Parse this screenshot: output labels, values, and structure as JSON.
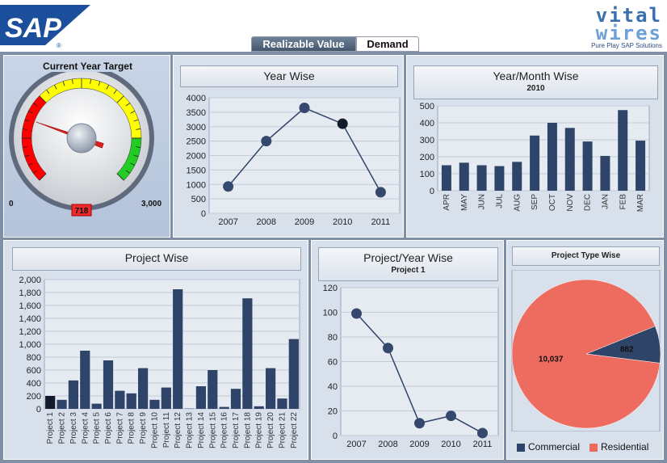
{
  "header": {
    "logo_text": "SAP",
    "tabs": [
      {
        "label": "Realizable Value",
        "active": true
      },
      {
        "label": "Demand",
        "active": false
      }
    ],
    "brand": {
      "line1": "vital",
      "line2": "wires",
      "tagline": "Pure Play SAP Solutions"
    }
  },
  "gauge": {
    "title": "Current Year Target",
    "min_label": "0",
    "max_label": "3,000",
    "min": 0,
    "max": 3000,
    "value": 718,
    "value_label": "718"
  },
  "colors": {
    "bar": "#2e4468",
    "accent_red": "#ee6b5f",
    "navy": "#2e4468",
    "gauge_red": "#ff0000",
    "gauge_yellow": "#ffff00",
    "gauge_green": "#22cc22"
  },
  "panels": {
    "year_wise": {
      "title": "Year Wise"
    },
    "year_month": {
      "title": "Year/Month Wise",
      "subtitle": "2010"
    },
    "project_wise": {
      "title": "Project Wise"
    },
    "project_year": {
      "title": "Project/Year Wise",
      "subtitle": "Project 1"
    },
    "project_type": {
      "title": "Project Type Wise"
    }
  },
  "chart_data": [
    {
      "id": "year_wise",
      "type": "line",
      "title": "Year Wise",
      "categories": [
        "2007",
        "2008",
        "2009",
        "2010",
        "2011"
      ],
      "values": [
        930,
        2500,
        3650,
        3100,
        730
      ],
      "ylim": [
        0,
        4000
      ],
      "yticks": [
        "0",
        "500",
        "1000",
        "1500",
        "2000",
        "2500",
        "3000",
        "3500",
        "4000"
      ],
      "grid": true
    },
    {
      "id": "year_month",
      "type": "bar",
      "title": "Year/Month Wise",
      "subtitle": "2010",
      "categories": [
        "APR",
        "MAY",
        "JUN",
        "JUL",
        "AUG",
        "SEP",
        "OCT",
        "NOV",
        "DEC",
        "JAN",
        "FEB",
        "MAR"
      ],
      "values": [
        150,
        165,
        150,
        145,
        170,
        325,
        400,
        370,
        290,
        205,
        475,
        295
      ],
      "ylim": [
        0,
        500
      ],
      "yticks": [
        "0",
        "100",
        "200",
        "300",
        "400",
        "500"
      ],
      "grid": true
    },
    {
      "id": "project_wise",
      "type": "bar",
      "title": "Project Wise",
      "categories": [
        "Project 1",
        "Project 2",
        "Project 3",
        "Project 4",
        "Project 5",
        "Project 6",
        "Project 7",
        "Project 8",
        "Project 9",
        "Project 10",
        "Project 11",
        "Project 12",
        "Project 13",
        "Project 14",
        "Project 15",
        "Project 16",
        "Project 17",
        "Project 18",
        "Project 19",
        "Project 20",
        "Project 21",
        "Project 22"
      ],
      "values": [
        200,
        140,
        440,
        900,
        80,
        750,
        280,
        240,
        630,
        140,
        330,
        1850,
        5,
        350,
        600,
        30,
        310,
        1710,
        40,
        630,
        160,
        1080
      ],
      "ylim": [
        0,
        2000
      ],
      "yticks": [
        "0",
        "200",
        "400",
        "600",
        "800",
        "1,000",
        "1,200",
        "1,400",
        "1,600",
        "1,800",
        "2,000"
      ],
      "grid": true
    },
    {
      "id": "project_year",
      "type": "line",
      "title": "Project/Year Wise",
      "subtitle": "Project 1",
      "categories": [
        "2007",
        "2008",
        "2009",
        "2010",
        "2011"
      ],
      "values": [
        99,
        71,
        10,
        16,
        2
      ],
      "ylim": [
        0,
        120
      ],
      "yticks": [
        "0",
        "20",
        "40",
        "60",
        "80",
        "100",
        "120"
      ],
      "grid": true
    },
    {
      "id": "project_type",
      "type": "pie",
      "title": "Project Type Wise",
      "slices": [
        {
          "name": "Commercial",
          "value": 882,
          "label": "882",
          "color": "#2e4468"
        },
        {
          "name": "Residential",
          "value": 10037,
          "label": "10,037",
          "color": "#ee6b5f"
        }
      ],
      "legend": "bottom"
    }
  ]
}
